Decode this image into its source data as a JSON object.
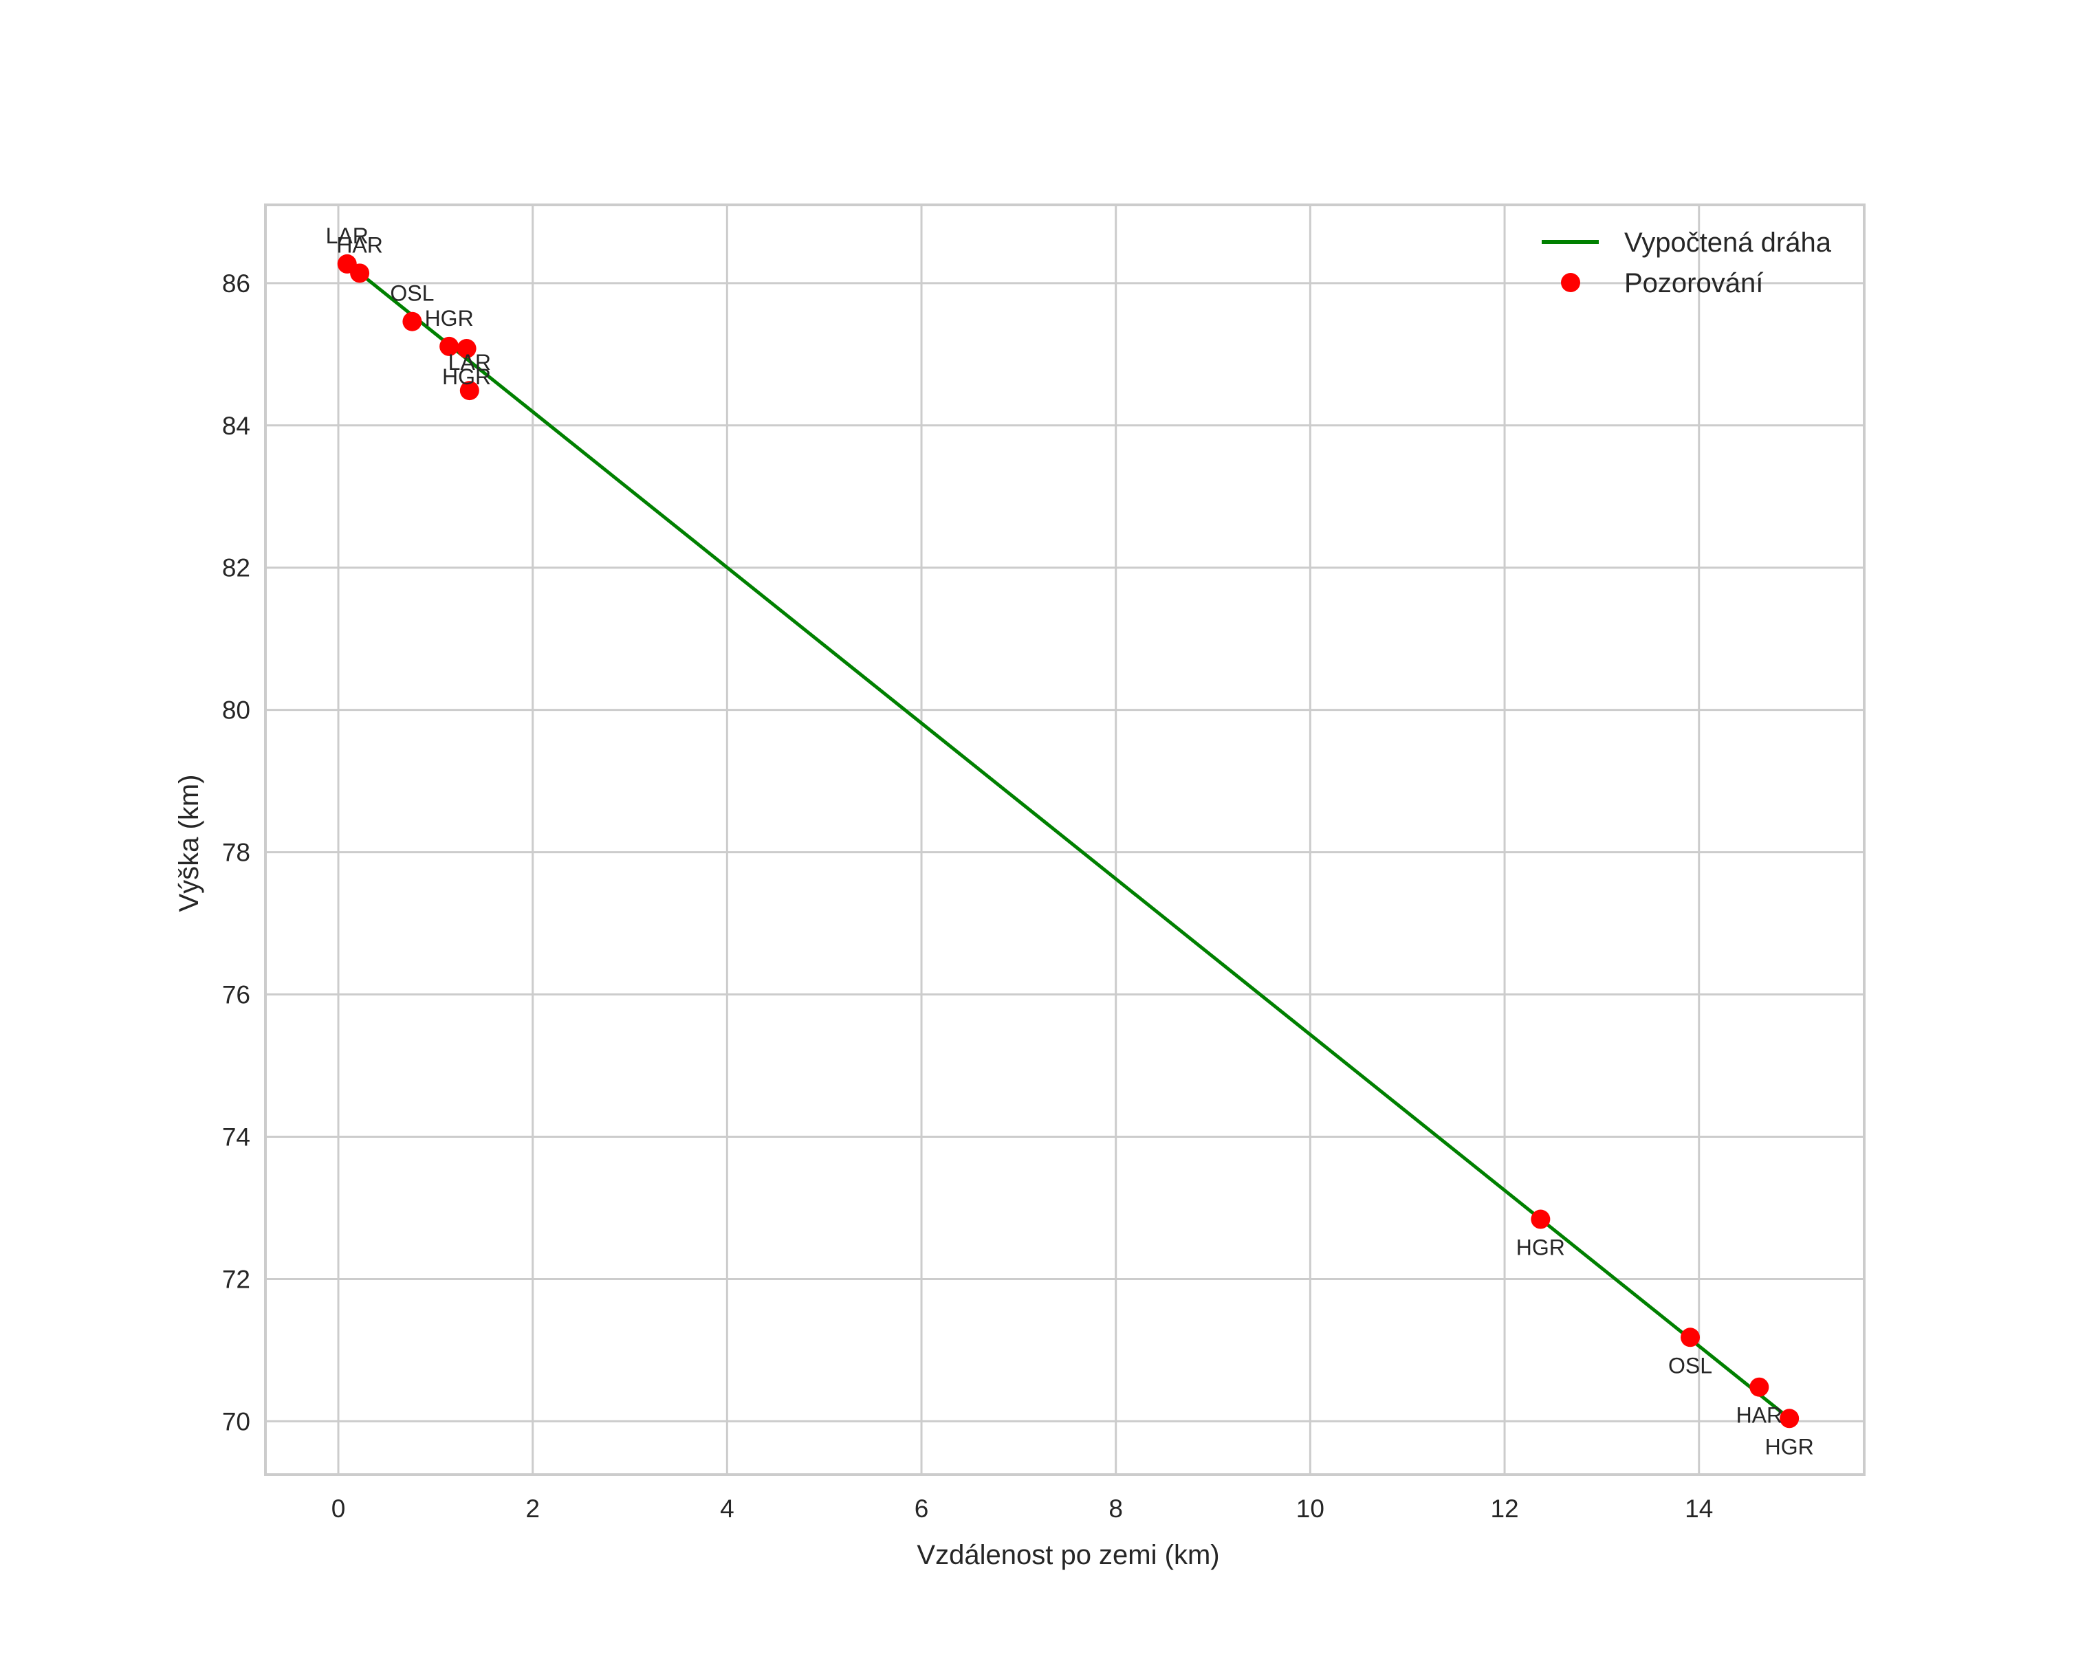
{
  "chart_data": {
    "type": "line",
    "title": "",
    "xlabel": "Vzdálenost po zemi (km)",
    "ylabel": "Výška (km)",
    "xlim": [
      -0.75,
      15.7
    ],
    "ylim": [
      69.25,
      87.1
    ],
    "grid": true,
    "legend_position": "upper right",
    "x_ticks": [
      0,
      2,
      4,
      6,
      8,
      10,
      12,
      14
    ],
    "x_tick_labels": [
      "0",
      "2",
      "4",
      "6",
      "8",
      "10",
      "12",
      "14"
    ],
    "y_ticks": [
      70,
      72,
      74,
      76,
      78,
      80,
      82,
      84,
      86
    ],
    "y_tick_labels": [
      "70",
      "72",
      "74",
      "76",
      "78",
      "80",
      "82",
      "84",
      "86"
    ],
    "series": [
      {
        "name": "Vypočtená dráha",
        "type": "line",
        "color": "#008000",
        "x": [
          0.22,
          14.93
        ],
        "y": [
          86.14,
          70.04
        ]
      },
      {
        "name": "Pozorování",
        "type": "scatter",
        "color": "#ff0000",
        "points": [
          {
            "label": "LAR",
            "x": 0.09,
            "y": 86.27,
            "label_pos": "above"
          },
          {
            "label": "HAR",
            "x": 0.22,
            "y": 86.14,
            "label_pos": "above"
          },
          {
            "label": "OSL",
            "x": 0.76,
            "y": 85.46,
            "label_pos": "above"
          },
          {
            "label": "HGR",
            "x": 1.14,
            "y": 85.11,
            "label_pos": "above"
          },
          {
            "label": "HGR",
            "x": 1.32,
            "y": 85.08,
            "label_pos": "below"
          },
          {
            "label": "LAR",
            "x": 1.35,
            "y": 84.49,
            "label_pos": "above"
          },
          {
            "label": "HGR",
            "x": 12.37,
            "y": 72.84,
            "label_pos": "below"
          },
          {
            "label": "OSL",
            "x": 13.91,
            "y": 71.18,
            "label_pos": "below"
          },
          {
            "label": "HAR",
            "x": 14.62,
            "y": 70.48,
            "label_pos": "below"
          },
          {
            "label": "HGR",
            "x": 14.93,
            "y": 70.04,
            "label_pos": "below"
          }
        ]
      }
    ]
  },
  "legend": {
    "items": [
      {
        "label": "Vypočtená dráha",
        "symbol": "line",
        "color": "#008000"
      },
      {
        "label": "Pozorování",
        "symbol": "dot",
        "color": "#ff0000"
      }
    ]
  },
  "colors": {
    "line": "#008000",
    "points": "#ff0000",
    "grid": "#cccccc",
    "frame": "#cccccc",
    "text": "#262626"
  }
}
